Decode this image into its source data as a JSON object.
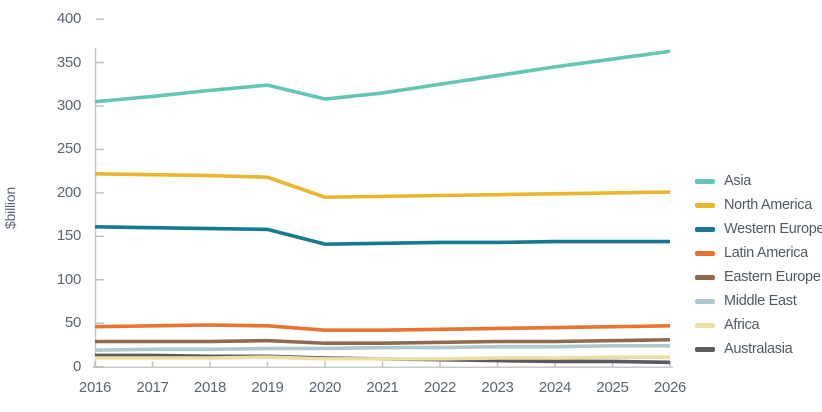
{
  "chart_data": {
    "type": "line",
    "title": "",
    "ylabel": "$billion",
    "x": [
      2016,
      2017,
      2018,
      2019,
      2020,
      2021,
      2022,
      2023,
      2024,
      2025,
      2026
    ],
    "yticks": [
      0,
      50,
      100,
      150,
      200,
      250,
      300,
      350,
      400
    ],
    "ylim": [
      0,
      400
    ],
    "grid": false,
    "legend_position": "right",
    "series": [
      {
        "name": "Asia",
        "color": "#63C6B4",
        "values": [
          305,
          311,
          318,
          324,
          308,
          315,
          325,
          335,
          345,
          354,
          363
        ]
      },
      {
        "name": "North America",
        "color": "#EBB62F",
        "values": [
          222,
          221,
          220,
          218,
          195,
          196,
          197,
          198,
          199,
          200,
          201
        ]
      },
      {
        "name": "Western Europe",
        "color": "#19798F",
        "values": [
          161,
          160,
          159,
          158,
          141,
          142,
          143,
          143,
          144,
          144,
          144
        ]
      },
      {
        "name": "Latin America",
        "color": "#E87431",
        "values": [
          46,
          47,
          48,
          47,
          42,
          42,
          43,
          44,
          45,
          46,
          47
        ]
      },
      {
        "name": "Eastern Europe",
        "color": "#8F6A4E",
        "values": [
          29,
          29,
          29,
          30,
          27,
          27,
          28,
          29,
          29,
          30,
          31
        ]
      },
      {
        "name": "Middle East",
        "color": "#AFC8CE",
        "values": [
          19,
          20,
          20,
          21,
          21,
          22,
          22,
          23,
          23,
          24,
          24
        ]
      },
      {
        "name": "Africa",
        "color": "#ECDFA4",
        "values": [
          10,
          10,
          10,
          11,
          9,
          9,
          9,
          10,
          10,
          11,
          11
        ]
      },
      {
        "name": "Australasia",
        "color": "#5A5B5E",
        "values": [
          13,
          13,
          12,
          12,
          10,
          9,
          8,
          7,
          6,
          6,
          5
        ]
      }
    ],
    "colors": {
      "axis": "#C5CACD",
      "tick": "#BDC2C6",
      "label": "#5B6570",
      "legend_text": "#525A61"
    }
  }
}
